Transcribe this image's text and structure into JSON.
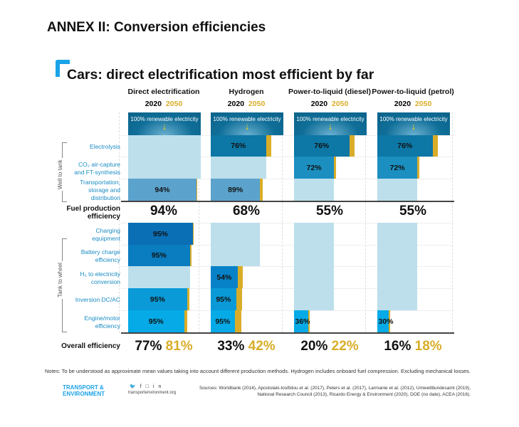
{
  "header": {
    "annex_title": "ANNEX II: Conversion efficiencies",
    "title": "Cars: direct electrification most efficient by far"
  },
  "chart_data": {
    "type": "bar",
    "title": "Cars: direct electrification most efficient by far",
    "years": [
      "2020",
      "2050"
    ],
    "source_label": "100% renewable electricity",
    "groups": [
      {
        "label": "Well to tank",
        "rows": [
          0,
          1,
          2
        ]
      },
      {
        "label": "Tank to wheel",
        "rows": [
          3,
          4,
          5,
          6,
          7
        ]
      }
    ],
    "rows": [
      "Electrolysis",
      "CO₂ air-capture and FT-synthesis",
      "Transportation, storage and distribution",
      "Charging equipment",
      "Battery charge efficiency",
      "H₂ to electricity conversion",
      "Inversion DC/AC",
      "Engine/motor efficiency"
    ],
    "fuel_production_label": "Fuel production efficiency",
    "overall_label": "Overall efficiency",
    "series": [
      {
        "name": "Direct electrification",
        "fuel_production": "94%",
        "overall_2020": "77%",
        "overall_2050": "81%",
        "cells": [
          {
            "label": "",
            "level_2020": 100,
            "level_2050": 100,
            "active": false
          },
          {
            "label": "",
            "level_2020": 100,
            "level_2050": 100,
            "active": false
          },
          {
            "label": "94%",
            "level_2020": 94,
            "level_2050": 95,
            "active": true
          },
          {
            "label": "95%",
            "level_2020": 89,
            "level_2050": 90,
            "active": true
          },
          {
            "label": "95%",
            "level_2020": 85,
            "level_2050": 87,
            "active": true
          },
          {
            "label": "",
            "level_2020": 85,
            "level_2050": 85,
            "active": false
          },
          {
            "label": "95%",
            "level_2020": 81,
            "level_2050": 84,
            "active": true
          },
          {
            "label": "95%",
            "level_2020": 77,
            "level_2050": 81,
            "active": true
          }
        ]
      },
      {
        "name": "Hydrogen",
        "fuel_production": "68%",
        "overall_2020": "33%",
        "overall_2050": "42%",
        "cells": [
          {
            "label": "76%",
            "level_2020": 76,
            "level_2050": 83,
            "active": true
          },
          {
            "label": "",
            "level_2020": 76,
            "level_2050": 76,
            "active": false
          },
          {
            "label": "89%",
            "level_2020": 68,
            "level_2050": 72,
            "active": true
          },
          {
            "label": "",
            "level_2020": 68,
            "level_2050": 68,
            "active": false
          },
          {
            "label": "",
            "level_2020": 68,
            "level_2050": 68,
            "active": false
          },
          {
            "label": "54%",
            "level_2020": 37,
            "level_2050": 44,
            "active": true
          },
          {
            "label": "95%",
            "level_2020": 35,
            "level_2050": 43,
            "active": true
          },
          {
            "label": "95%",
            "level_2020": 33,
            "level_2050": 42,
            "active": true
          }
        ]
      },
      {
        "name": "Power-to-liquid (diesel)",
        "fuel_production": "55%",
        "overall_2020": "20%",
        "overall_2050": "22%",
        "cells": [
          {
            "label": "76%",
            "level_2020": 76,
            "level_2050": 83,
            "active": true
          },
          {
            "label": "72%",
            "level_2020": 55,
            "level_2050": 58,
            "active": true
          },
          {
            "label": "",
            "level_2020": 55,
            "level_2050": 55,
            "active": false
          },
          {
            "label": "",
            "level_2020": 55,
            "level_2050": 55,
            "active": false
          },
          {
            "label": "",
            "level_2020": 55,
            "level_2050": 55,
            "active": false
          },
          {
            "label": "",
            "level_2020": 55,
            "level_2050": 55,
            "active": false
          },
          {
            "label": "",
            "level_2020": 55,
            "level_2050": 55,
            "active": false
          },
          {
            "label": "36%",
            "level_2020": 20,
            "level_2050": 22,
            "active": true
          }
        ]
      },
      {
        "name": "Power-to-liquid (petrol)",
        "fuel_production": "55%",
        "overall_2020": "16%",
        "overall_2050": "18%",
        "cells": [
          {
            "label": "76%",
            "level_2020": 76,
            "level_2050": 83,
            "active": true
          },
          {
            "label": "72%",
            "level_2020": 55,
            "level_2050": 58,
            "active": true
          },
          {
            "label": "",
            "level_2020": 55,
            "level_2050": 55,
            "active": false
          },
          {
            "label": "",
            "level_2020": 55,
            "level_2050": 55,
            "active": false
          },
          {
            "label": "",
            "level_2020": 55,
            "level_2050": 55,
            "active": false
          },
          {
            "label": "",
            "level_2020": 55,
            "level_2050": 55,
            "active": false
          },
          {
            "label": "",
            "level_2020": 55,
            "level_2050": 55,
            "active": false
          },
          {
            "label": "30%",
            "level_2020": 16,
            "level_2050": 18,
            "active": true
          }
        ]
      }
    ],
    "colors": {
      "row_colors": [
        "#0d77a6",
        "#1b8fc0",
        "#5ba3cc",
        "#0a6fb5",
        "#0a7cc0",
        "#0782c8",
        "#0a9ad8",
        "#05aae6"
      ],
      "inactive": "#bcdfeb",
      "gold_2050": "#d9ad28"
    }
  },
  "footer": {
    "notes": "Notes: To be understood as approximate mean values taking into account different production methods. Hydrogen includes onboard fuel compression. Excluding mechanical losses.",
    "sources_line1": "Sources: Worldbank (2014), Apostolaki-Iosifidou et al. (2017), Peters et al. (2017), Larmanie et al. (2012), Umweltbundesamt (2019),",
    "sources_line2": "National Research Council (2013), Ricardo Energy & Environment (2020), DOE (no date), ACEA (2016).",
    "logo_line1": "TRANSPORT &",
    "logo_line2": "ENVIRONMENT",
    "website": "transportenvironment.org"
  }
}
